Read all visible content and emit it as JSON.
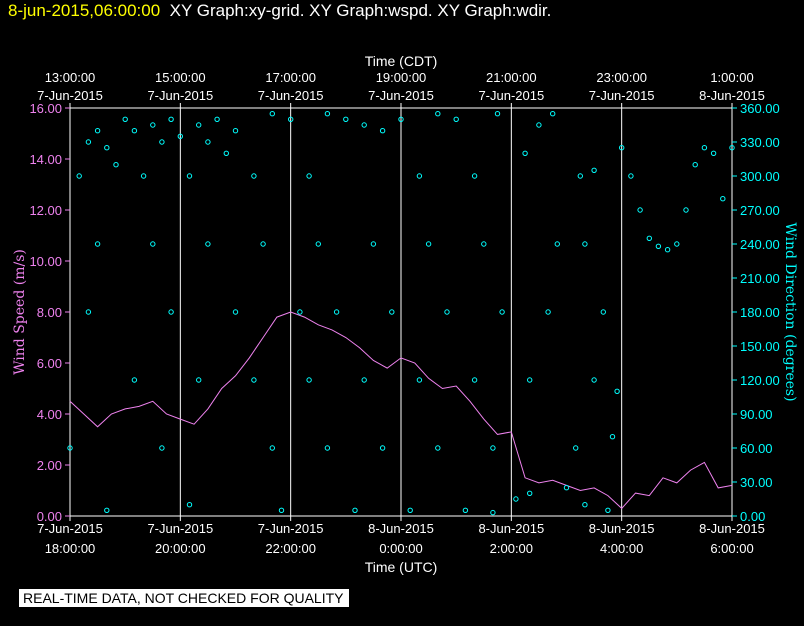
{
  "header": {
    "timestamp": "8-jun-2015,06:00:00",
    "graphs": "XY Graph:xy-grid.  XY Graph:wspd.  XY Graph:wdir."
  },
  "disclaimer": "REAL-TIME DATA, NOT CHECKED FOR QUALITY",
  "colors": {
    "speed": "#ee82ee",
    "direction": "#00ffff",
    "grid": "#ffffff",
    "header_time": "#ffff00"
  },
  "chart_data": {
    "type": "scatter",
    "xlabel_top": "Time (CDT)",
    "xlabel_bottom": "Time (UTC)",
    "ylabel_left": "Wind Speed (m/s)",
    "ylabel_right": "Wind Direction (degrees)",
    "xlim": [
      "2015-06-07T18:00Z",
      "2015-06-08T06:00Z"
    ],
    "ylim_left": [
      0,
      16
    ],
    "ylim_right": [
      0,
      360
    ],
    "grid": true,
    "top_ticks": [
      {
        "time": "2015-06-07T18:00Z",
        "l1": "13:00:00",
        "l2": "7-Jun-2015"
      },
      {
        "time": "2015-06-07T20:00Z",
        "l1": "15:00:00",
        "l2": "7-Jun-2015"
      },
      {
        "time": "2015-06-07T22:00Z",
        "l1": "17:00:00",
        "l2": "7-Jun-2015"
      },
      {
        "time": "2015-06-08T00:00Z",
        "l1": "19:00:00",
        "l2": "7-Jun-2015"
      },
      {
        "time": "2015-06-08T02:00Z",
        "l1": "21:00:00",
        "l2": "7-Jun-2015"
      },
      {
        "time": "2015-06-08T04:00Z",
        "l1": "23:00:00",
        "l2": "7-Jun-2015"
      },
      {
        "time": "2015-06-08T06:00Z",
        "l1": "1:00:00",
        "l2": "8-Jun-2015"
      }
    ],
    "bottom_ticks": [
      {
        "time": "2015-06-07T18:00Z",
        "l1": "7-Jun-2015",
        "l2": "18:00:00"
      },
      {
        "time": "2015-06-07T20:00Z",
        "l1": "7-Jun-2015",
        "l2": "20:00:00"
      },
      {
        "time": "2015-06-07T22:00Z",
        "l1": "7-Jun-2015",
        "l2": "22:00:00"
      },
      {
        "time": "2015-06-08T00:00Z",
        "l1": "8-Jun-2015",
        "l2": "0:00:00"
      },
      {
        "time": "2015-06-08T02:00Z",
        "l1": "8-Jun-2015",
        "l2": "2:00:00"
      },
      {
        "time": "2015-06-08T04:00Z",
        "l1": "8-Jun-2015",
        "l2": "4:00:00"
      },
      {
        "time": "2015-06-08T06:00Z",
        "l1": "8-Jun-2015",
        "l2": "6:00:00"
      }
    ],
    "left_ticks": [
      "0.00",
      "2.00",
      "4.00",
      "6.00",
      "8.00",
      "10.00",
      "12.00",
      "14.00",
      "16.00"
    ],
    "right_ticks": [
      "0.00",
      "30.00",
      "60.00",
      "90.00",
      "120.00",
      "150.00",
      "180.00",
      "210.00",
      "240.00",
      "270.00",
      "300.00",
      "330.00",
      "360.00"
    ],
    "series": [
      {
        "name": "wspd",
        "kind": "line",
        "points": [
          [
            "2015-06-07T18:00Z",
            4.5
          ],
          [
            "2015-06-07T18:15Z",
            4.0
          ],
          [
            "2015-06-07T18:30Z",
            3.5
          ],
          [
            "2015-06-07T18:45Z",
            4.0
          ],
          [
            "2015-06-07T19:00Z",
            4.2
          ],
          [
            "2015-06-07T19:15Z",
            4.3
          ],
          [
            "2015-06-07T19:30Z",
            4.5
          ],
          [
            "2015-06-07T19:45Z",
            4.0
          ],
          [
            "2015-06-07T20:00Z",
            3.8
          ],
          [
            "2015-06-07T20:15Z",
            3.6
          ],
          [
            "2015-06-07T20:30Z",
            4.2
          ],
          [
            "2015-06-07T20:45Z",
            5.0
          ],
          [
            "2015-06-07T21:00Z",
            5.5
          ],
          [
            "2015-06-07T21:15Z",
            6.2
          ],
          [
            "2015-06-07T21:30Z",
            7.0
          ],
          [
            "2015-06-07T21:45Z",
            7.8
          ],
          [
            "2015-06-07T22:00Z",
            8.0
          ],
          [
            "2015-06-07T22:15Z",
            7.8
          ],
          [
            "2015-06-07T22:30Z",
            7.5
          ],
          [
            "2015-06-07T22:45Z",
            7.3
          ],
          [
            "2015-06-07T23:00Z",
            7.0
          ],
          [
            "2015-06-07T23:15Z",
            6.6
          ],
          [
            "2015-06-07T23:30Z",
            6.1
          ],
          [
            "2015-06-07T23:45Z",
            5.8
          ],
          [
            "2015-06-08T00:00Z",
            6.2
          ],
          [
            "2015-06-08T00:15Z",
            6.0
          ],
          [
            "2015-06-08T00:30Z",
            5.4
          ],
          [
            "2015-06-08T00:45Z",
            5.0
          ],
          [
            "2015-06-08T01:00Z",
            5.1
          ],
          [
            "2015-06-08T01:15Z",
            4.5
          ],
          [
            "2015-06-08T01:30Z",
            3.8
          ],
          [
            "2015-06-08T01:45Z",
            3.2
          ],
          [
            "2015-06-08T02:00Z",
            3.3
          ],
          [
            "2015-06-08T02:15Z",
            1.5
          ],
          [
            "2015-06-08T02:30Z",
            1.3
          ],
          [
            "2015-06-08T02:45Z",
            1.4
          ],
          [
            "2015-06-08T03:00Z",
            1.2
          ],
          [
            "2015-06-08T03:15Z",
            1.0
          ],
          [
            "2015-06-08T03:30Z",
            1.1
          ],
          [
            "2015-06-08T03:45Z",
            0.8
          ],
          [
            "2015-06-08T04:00Z",
            0.3
          ],
          [
            "2015-06-08T04:15Z",
            0.9
          ],
          [
            "2015-06-08T04:30Z",
            0.8
          ],
          [
            "2015-06-08T04:45Z",
            1.5
          ],
          [
            "2015-06-08T05:00Z",
            1.3
          ],
          [
            "2015-06-08T05:15Z",
            1.8
          ],
          [
            "2015-06-08T05:30Z",
            2.1
          ],
          [
            "2015-06-08T05:45Z",
            1.1
          ],
          [
            "2015-06-08T06:00Z",
            1.2
          ]
        ]
      },
      {
        "name": "wdir",
        "kind": "scatter",
        "points": [
          [
            "2015-06-07T18:00Z",
            60
          ],
          [
            "2015-06-07T18:10Z",
            300
          ],
          [
            "2015-06-07T18:20Z",
            330
          ],
          [
            "2015-06-07T18:30Z",
            340
          ],
          [
            "2015-06-07T18:40Z",
            325
          ],
          [
            "2015-06-07T18:50Z",
            310
          ],
          [
            "2015-06-07T19:00Z",
            350
          ],
          [
            "2015-06-07T19:10Z",
            340
          ],
          [
            "2015-06-07T19:20Z",
            300
          ],
          [
            "2015-06-07T19:30Z",
            345
          ],
          [
            "2015-06-07T19:40Z",
            330
          ],
          [
            "2015-06-07T19:50Z",
            350
          ],
          [
            "2015-06-07T20:00Z",
            335
          ],
          [
            "2015-06-07T20:10Z",
            300
          ],
          [
            "2015-06-07T20:20Z",
            345
          ],
          [
            "2015-06-07T20:30Z",
            330
          ],
          [
            "2015-06-07T20:40Z",
            350
          ],
          [
            "2015-06-07T20:50Z",
            320
          ],
          [
            "2015-06-07T21:00Z",
            340
          ],
          [
            "2015-06-07T21:20Z",
            300
          ],
          [
            "2015-06-07T21:40Z",
            355
          ],
          [
            "2015-06-07T22:00Z",
            350
          ],
          [
            "2015-06-07T22:20Z",
            300
          ],
          [
            "2015-06-07T22:40Z",
            355
          ],
          [
            "2015-06-07T23:00Z",
            350
          ],
          [
            "2015-06-07T23:20Z",
            345
          ],
          [
            "2015-06-07T23:40Z",
            340
          ],
          [
            "2015-06-08T00:00Z",
            350
          ],
          [
            "2015-06-08T00:20Z",
            300
          ],
          [
            "2015-06-08T00:40Z",
            355
          ],
          [
            "2015-06-08T01:00Z",
            350
          ],
          [
            "2015-06-08T01:20Z",
            300
          ],
          [
            "2015-06-08T01:45Z",
            355
          ],
          [
            "2015-06-08T02:15Z",
            320
          ],
          [
            "2015-06-08T02:30Z",
            345
          ],
          [
            "2015-06-08T02:45Z",
            355
          ],
          [
            "2015-06-08T03:15Z",
            300
          ],
          [
            "2015-06-08T03:30Z",
            305
          ],
          [
            "2015-06-08T04:00Z",
            325
          ],
          [
            "2015-06-08T04:10Z",
            300
          ],
          [
            "2015-06-08T04:20Z",
            270
          ],
          [
            "2015-06-08T04:30Z",
            245
          ],
          [
            "2015-06-08T04:40Z",
            238
          ],
          [
            "2015-06-08T04:50Z",
            235
          ],
          [
            "2015-06-08T05:00Z",
            240
          ],
          [
            "2015-06-08T05:10Z",
            270
          ],
          [
            "2015-06-08T05:20Z",
            310
          ],
          [
            "2015-06-08T05:30Z",
            325
          ],
          [
            "2015-06-08T05:40Z",
            320
          ],
          [
            "2015-06-08T05:50Z",
            280
          ],
          [
            "2015-06-08T06:00Z",
            325
          ],
          [
            "2015-06-07T18:30Z",
            240
          ],
          [
            "2015-06-07T19:30Z",
            240
          ],
          [
            "2015-06-07T20:30Z",
            240
          ],
          [
            "2015-06-07T21:30Z",
            240
          ],
          [
            "2015-06-07T22:30Z",
            240
          ],
          [
            "2015-06-07T23:30Z",
            240
          ],
          [
            "2015-06-08T00:30Z",
            240
          ],
          [
            "2015-06-08T01:30Z",
            240
          ],
          [
            "2015-06-08T02:50Z",
            240
          ],
          [
            "2015-06-08T03:20Z",
            240
          ],
          [
            "2015-06-07T18:20Z",
            180
          ],
          [
            "2015-06-07T19:50Z",
            180
          ],
          [
            "2015-06-07T21:00Z",
            180
          ],
          [
            "2015-06-07T22:10Z",
            180
          ],
          [
            "2015-06-07T22:50Z",
            180
          ],
          [
            "2015-06-07T23:50Z",
            180
          ],
          [
            "2015-06-08T00:50Z",
            180
          ],
          [
            "2015-06-08T01:50Z",
            180
          ],
          [
            "2015-06-08T02:40Z",
            180
          ],
          [
            "2015-06-08T03:40Z",
            180
          ],
          [
            "2015-06-07T19:10Z",
            120
          ],
          [
            "2015-06-07T20:20Z",
            120
          ],
          [
            "2015-06-07T21:20Z",
            120
          ],
          [
            "2015-06-07T22:20Z",
            120
          ],
          [
            "2015-06-07T23:20Z",
            120
          ],
          [
            "2015-06-08T00:20Z",
            120
          ],
          [
            "2015-06-08T01:20Z",
            120
          ],
          [
            "2015-06-08T02:20Z",
            120
          ],
          [
            "2015-06-08T03:30Z",
            120
          ],
          [
            "2015-06-08T03:55Z",
            110
          ],
          [
            "2015-06-07T19:40Z",
            60
          ],
          [
            "2015-06-07T21:40Z",
            60
          ],
          [
            "2015-06-07T22:40Z",
            60
          ],
          [
            "2015-06-07T23:40Z",
            60
          ],
          [
            "2015-06-08T00:40Z",
            60
          ],
          [
            "2015-06-08T01:40Z",
            60
          ],
          [
            "2015-06-08T03:10Z",
            60
          ],
          [
            "2015-06-08T03:50Z",
            70
          ],
          [
            "2015-06-07T18:40Z",
            5
          ],
          [
            "2015-06-07T20:10Z",
            10
          ],
          [
            "2015-06-07T21:50Z",
            5
          ],
          [
            "2015-06-07T23:10Z",
            5
          ],
          [
            "2015-06-08T00:10Z",
            5
          ],
          [
            "2015-06-08T01:10Z",
            5
          ],
          [
            "2015-06-08T01:40Z",
            3
          ],
          [
            "2015-06-08T02:05Z",
            15
          ],
          [
            "2015-06-08T02:20Z",
            20
          ],
          [
            "2015-06-08T03:00Z",
            25
          ],
          [
            "2015-06-08T03:20Z",
            10
          ],
          [
            "2015-06-08T03:45Z",
            5
          ]
        ]
      }
    ]
  }
}
